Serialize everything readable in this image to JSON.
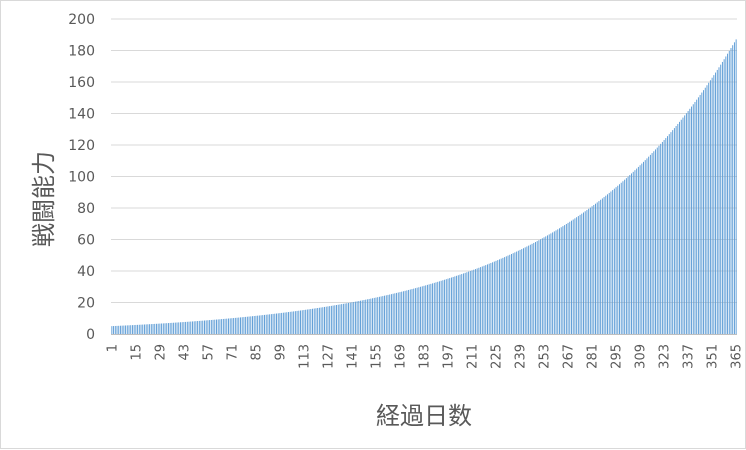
{
  "chart_data": {
    "type": "bar",
    "title": "",
    "xlabel": "経過日数",
    "ylabel": "戦闘能力",
    "x_range": [
      1,
      365
    ],
    "ylim": [
      0,
      200
    ],
    "y_ticks": [
      0,
      20,
      40,
      60,
      80,
      100,
      120,
      140,
      160,
      180,
      200
    ],
    "x_tick_labels": [
      1,
      15,
      29,
      43,
      57,
      71,
      85,
      99,
      113,
      127,
      141,
      155,
      169,
      183,
      197,
      211,
      225,
      239,
      253,
      267,
      281,
      295,
      309,
      323,
      337,
      351,
      365
    ],
    "series": [
      {
        "name": "",
        "values_formula": "y = 5 * 1.01^(x-1)",
        "sample_points": [
          {
            "x": 1,
            "y": 5.0
          },
          {
            "x": 71,
            "y": 10.0
          },
          {
            "x": 141,
            "y": 20.2
          },
          {
            "x": 211,
            "y": 40.5
          },
          {
            "x": 281,
            "y": 81.5
          },
          {
            "x": 309,
            "y": 107.0
          },
          {
            "x": 337,
            "y": 141.0
          },
          {
            "x": 365,
            "y": 186.5
          }
        ]
      }
    ],
    "grid": true,
    "bar_color": "#5b9bd5"
  }
}
